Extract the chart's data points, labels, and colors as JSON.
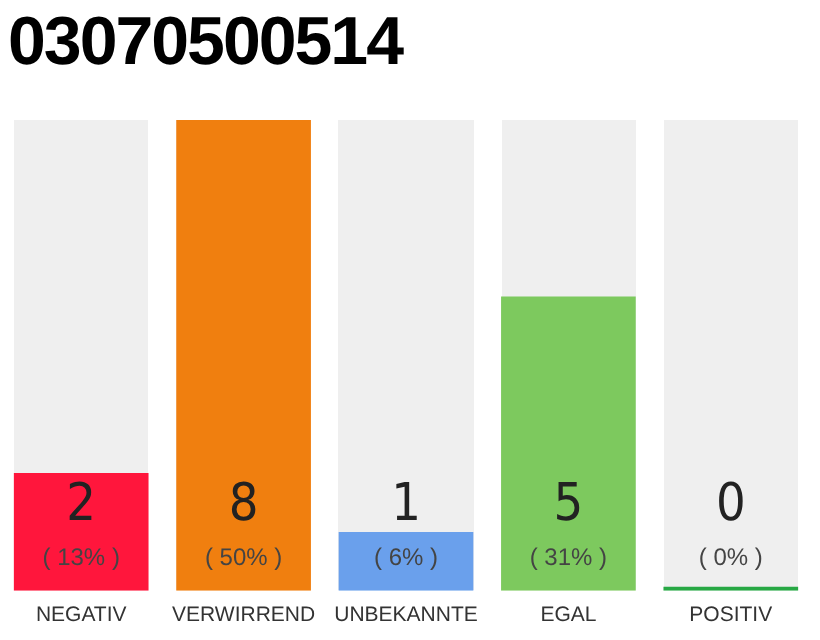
{
  "chart_data": {
    "type": "bar",
    "title": "03070500514",
    "categories": [
      "NEGATIV",
      "VERWIRREND",
      "UNBEKANNTE",
      "EGAL",
      "POSITIV"
    ],
    "values": [
      2,
      8,
      1,
      5,
      0
    ],
    "colors": [
      "#ff163c",
      "#f07f0f",
      "#6aa0ec",
      "#7dc95e",
      "#27a844"
    ],
    "data_labels": true,
    "annotations": [
      "( 13% )",
      "( 50% )",
      "( 6% )",
      "( 31% )",
      "( 0% )"
    ],
    "grid": false,
    "legend": false
  }
}
